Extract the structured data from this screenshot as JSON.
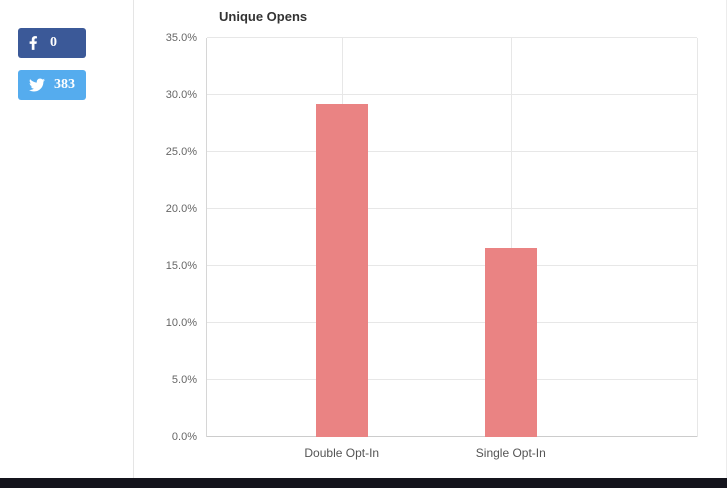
{
  "social": {
    "facebook": {
      "count": "0",
      "brand_color": "#3b5998"
    },
    "twitter": {
      "count": "383",
      "brand_color": "#55acee"
    }
  },
  "chart_data": {
    "type": "bar",
    "title": "Unique Opens",
    "categories": [
      "Double Opt-In",
      "Single Opt-In"
    ],
    "values": [
      29.2,
      16.6
    ],
    "unit": "%",
    "ylim": [
      0,
      35
    ],
    "ytick_step": 5,
    "ytick_labels": [
      "0.0%",
      "5.0%",
      "10.0%",
      "15.0%",
      "20.0%",
      "25.0%",
      "30.0%",
      "35.0%"
    ],
    "bar_color": "#ea8383",
    "grid": true,
    "legend": "none"
  },
  "page": {
    "footer_color": "#14141c"
  }
}
